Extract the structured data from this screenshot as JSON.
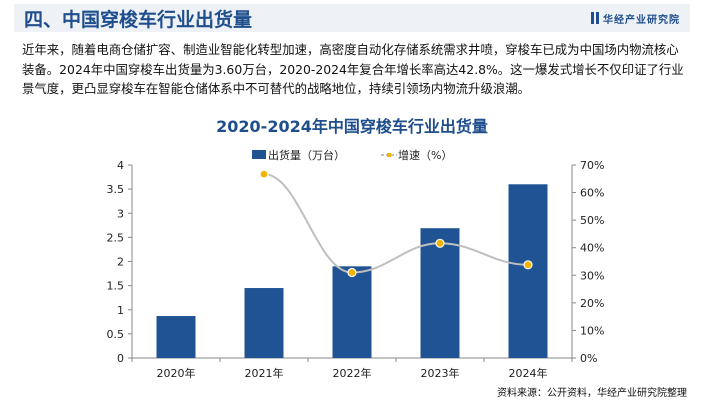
{
  "header": {
    "title": "四、中国穿梭车行业出货量",
    "brand": "华经产业研究院"
  },
  "paragraph": "近年来，随着电商仓储扩容、制造业智能化转型加速，高密度自动化存储系统需求井喷，穿梭车已成为中国场内物流核心装备。2024年中国穿梭车出货量为3.60万台，2020-2024年复合年增长率高达42.8%。这一爆发式增长不仅印证了行业景气度，更凸显穿梭车在智能仓储体系中不可替代的战略地位，持续引领场内物流升级浪潮。",
  "source": "资料来源：公开资料，华经产业研究院整理",
  "chart_data": {
    "type": "bar+line",
    "title": "2020-2024年中国穿梭车行业出货量",
    "categories": [
      "2020年",
      "2021年",
      "2022年",
      "2023年",
      "2024年"
    ],
    "series": [
      {
        "name": "出货量（万台）",
        "type": "bar",
        "axis": "left",
        "color": "#1f5394",
        "values": [
          0.87,
          1.45,
          1.9,
          2.69,
          3.6
        ]
      },
      {
        "name": "增速（%）",
        "type": "line",
        "axis": "right",
        "color": "#bfbfbf",
        "marker_color": "#f0b400",
        "values": [
          null,
          66.7,
          31.0,
          41.6,
          33.8
        ]
      }
    ],
    "y_left": {
      "min": 0,
      "max": 4,
      "ticks": [
        "0",
        "0.5",
        "1",
        "1.5",
        "2",
        "2.5",
        "3",
        "3.5",
        "4"
      ]
    },
    "y_right": {
      "min": 0,
      "max": 70,
      "ticks": [
        "0%",
        "10%",
        "20%",
        "30%",
        "40%",
        "50%",
        "60%",
        "70%"
      ]
    },
    "legend": "top"
  }
}
